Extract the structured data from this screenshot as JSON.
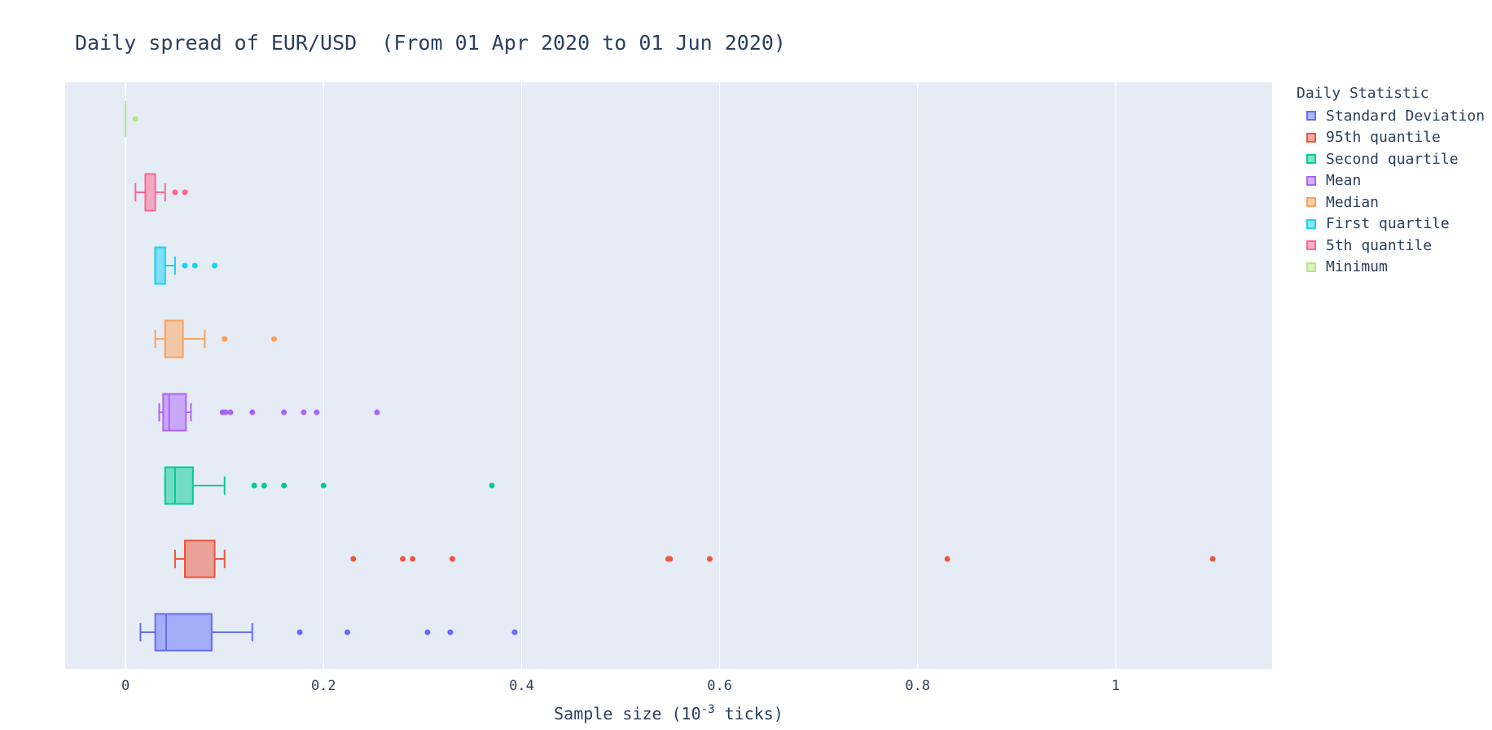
{
  "chart_data": {
    "type": "box",
    "title": "Daily spread of EUR/USD  (From 01 Apr 2020 to 01 Jun 2020)",
    "xlabel_main": "Sample size (10",
    "xlabel_sup": "-3",
    "xlabel_tail": " ticks)",
    "xlim": [
      -0.061,
      1.158
    ],
    "xticks": [
      0,
      0.2,
      0.4,
      0.6,
      0.8,
      1
    ],
    "xtick_labels": [
      "0",
      "0.2",
      "0.4",
      "0.6",
      "0.8",
      "1"
    ],
    "plot_background": "#e5ecf6",
    "grid": true,
    "legend_title": "Daily Statistic",
    "legend_placement": "top-right",
    "series": [
      {
        "name": "Standard Deviation",
        "color": "#636efa",
        "min": 0.015,
        "q1": 0.03,
        "median": 0.041,
        "q3": 0.087,
        "max": 0.128,
        "outliers": [
          0.176,
          0.224,
          0.305,
          0.328,
          0.393
        ]
      },
      {
        "name": "95th quantile",
        "color": "#ef553b",
        "min": 0.05,
        "q1": 0.06,
        "median": 0.06,
        "q3": 0.09,
        "max": 0.1,
        "outliers": [
          0.23,
          0.28,
          0.29,
          0.33,
          0.548,
          0.55,
          0.59,
          0.83,
          1.098
        ]
      },
      {
        "name": "Second quartile",
        "color": "#00cc96",
        "min": 0.04,
        "q1": 0.04,
        "median": 0.05,
        "q3": 0.068,
        "max": 0.1,
        "outliers": [
          0.13,
          0.14,
          0.16,
          0.2,
          0.37
        ]
      },
      {
        "name": "Mean",
        "color": "#ab63fa",
        "min": 0.034,
        "q1": 0.038,
        "median": 0.044,
        "q3": 0.061,
        "max": 0.066,
        "outliers": [
          0.098,
          0.101,
          0.106,
          0.128,
          0.16,
          0.18,
          0.193,
          0.254
        ]
      },
      {
        "name": "Median",
        "color": "#ffa15a",
        "min": 0.03,
        "q1": 0.04,
        "median": 0.04,
        "q3": 0.058,
        "max": 0.08,
        "outliers": [
          0.1,
          0.15
        ]
      },
      {
        "name": "First quartile",
        "color": "#19d3f3",
        "min": 0.03,
        "q1": 0.03,
        "median": 0.03,
        "q3": 0.04,
        "max": 0.05,
        "outliers": [
          0.06,
          0.07,
          0.09
        ]
      },
      {
        "name": "5th quantile",
        "color": "#ff6692",
        "min": 0.01,
        "q1": 0.02,
        "median": 0.02,
        "q3": 0.03,
        "max": 0.04,
        "outliers": [
          0.05,
          0.06
        ]
      },
      {
        "name": "Minimum",
        "color": "#b6e880",
        "min": 0,
        "q1": 0,
        "median": 0,
        "q3": 0,
        "max": 0,
        "outliers": [
          0.01
        ]
      }
    ],
    "legend_order": [
      "Standard Deviation",
      "95th quantile",
      "Second quartile",
      "Mean",
      "Median",
      "First quartile",
      "5th quantile",
      "Minimum"
    ]
  }
}
